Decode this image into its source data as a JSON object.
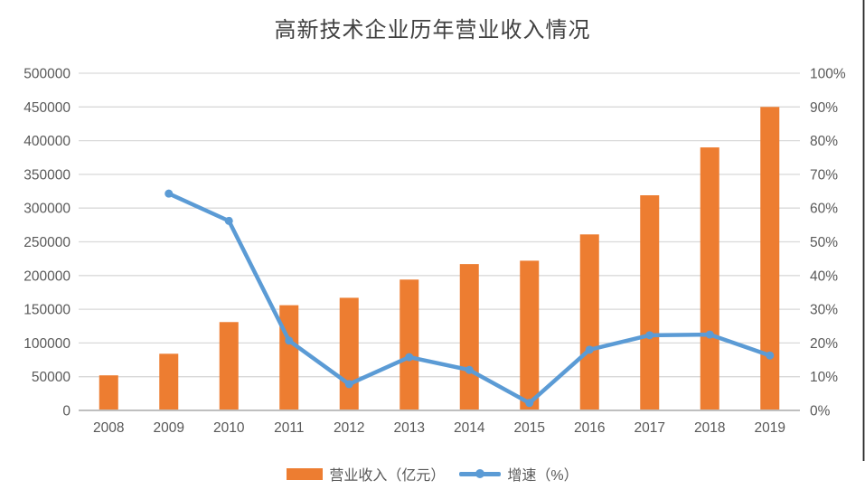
{
  "chart_data": {
    "type": "combo",
    "title": "高新技术企业历年营业收入情况",
    "categories": [
      "2008",
      "2009",
      "2010",
      "2011",
      "2012",
      "2013",
      "2014",
      "2015",
      "2016",
      "2017",
      "2018",
      "2019"
    ],
    "series": [
      {
        "name": "营业收入（亿元）",
        "type": "bar",
        "axis": "left",
        "color": "#ED7D31",
        "values": [
          52000,
          84000,
          131000,
          156000,
          167000,
          194000,
          217000,
          222000,
          261000,
          319000,
          390000,
          450000
        ]
      },
      {
        "name": "增速（%）",
        "type": "line",
        "axis": "right",
        "color": "#5B9BD5",
        "values": [
          null,
          64.3,
          56.2,
          20.7,
          7.8,
          15.8,
          12.0,
          2.2,
          18.0,
          22.3,
          22.5,
          16.3
        ]
      }
    ],
    "left_axis": {
      "min": 0,
      "max": 500000,
      "step": 50000,
      "tick_labels": [
        "0",
        "50000",
        "100000",
        "150000",
        "200000",
        "250000",
        "300000",
        "350000",
        "400000",
        "450000",
        "500000"
      ]
    },
    "right_axis": {
      "min": 0,
      "max": 100,
      "step": 10,
      "tick_labels": [
        "0%",
        "10%",
        "20%",
        "30%",
        "40%",
        "50%",
        "60%",
        "70%",
        "80%",
        "90%",
        "100%"
      ]
    },
    "grid": true,
    "legend_position": "bottom",
    "colors": {
      "grid": "#D9D9D9",
      "axis_line": "#BFBFBF",
      "axis_text": "#595959",
      "title_text": "#404040",
      "border_line": "#262626"
    }
  }
}
